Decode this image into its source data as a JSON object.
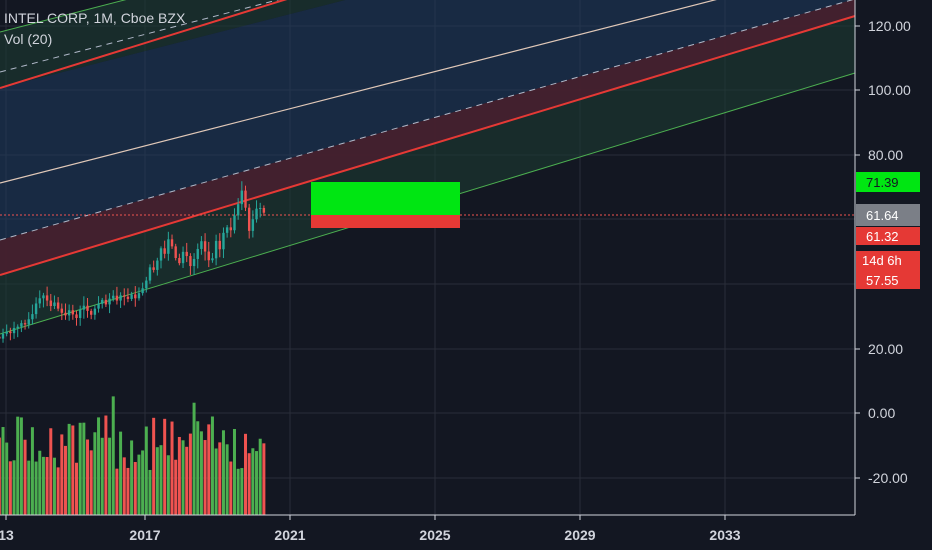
{
  "legend": {
    "symbol": "INTEL CORP, 1M, Cboe BZX",
    "indicator": "Vol (20)"
  },
  "colors": {
    "background": "#131722",
    "grid": "#2a2e39",
    "axis_text": "#d1d4dc",
    "up": "#26a69a",
    "up_bar": "#4caf50",
    "down": "#ef5350",
    "channel_red": "#e53935",
    "channel_green": "#4caf50",
    "channel_white": "#e0c8b8",
    "target_green": "#00e612",
    "stop_red": "#e53935",
    "price_grey": "#7b7f87"
  },
  "chart_data": {
    "type": "candlestick",
    "y_axis_ticks": [
      "120.00",
      "100.00",
      "80.00",
      "20.00",
      "0.00",
      "-20.00"
    ],
    "x_axis_ticks": [
      "13",
      "2017",
      "2021",
      "2025",
      "2029",
      "2033"
    ],
    "price_labels": {
      "target": "71.39",
      "last": "61.64",
      "stop": "61.32",
      "countdown": "14d 6h",
      "low": "57.55"
    },
    "position": {
      "entry": 61.64,
      "target": 71.39,
      "stop": 57.55
    },
    "candles_year_start": 2013.0,
    "candles_year_end": 2020.5,
    "closes": [
      22.0,
      23.2,
      22.6,
      24.1,
      24.8,
      24.3,
      25.9,
      26.3,
      27.4,
      27.0,
      28.6,
      30.2,
      33.5,
      35.1,
      36.0,
      34.4,
      32.7,
      33.8,
      31.9,
      30.6,
      29.8,
      31.4,
      30.1,
      29.0,
      31.6,
      32.8,
      31.2,
      30.0,
      31.9,
      33.4,
      34.6,
      33.2,
      35.0,
      35.9,
      34.4,
      36.0,
      35.6,
      34.9,
      36.3,
      35.1,
      36.7,
      38.2,
      40.6,
      44.7,
      43.9,
      46.8,
      50.6,
      48.9,
      53.4,
      51.2,
      47.6,
      46.0,
      49.5,
      48.2,
      45.1,
      47.3,
      50.4,
      52.8,
      49.6,
      46.9,
      47.5,
      52.9,
      50.3,
      55.4,
      57.1,
      56.2,
      60.8,
      64.3,
      68.5,
      63.2,
      56.0,
      59.6,
      62.9,
      63.1,
      61.64
    ]
  }
}
